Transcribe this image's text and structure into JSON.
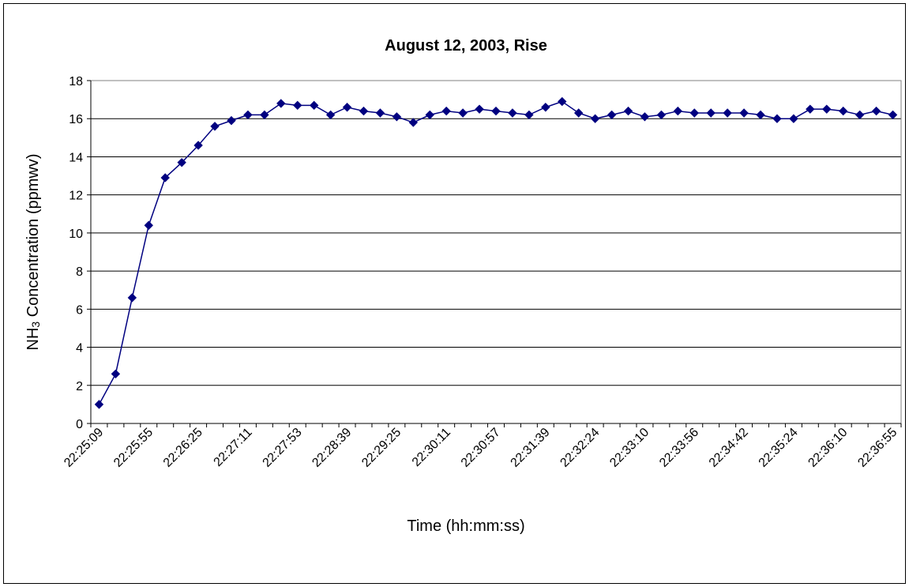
{
  "chart_data": {
    "type": "line",
    "title": "August 12, 2003,  Rise",
    "xlabel": "Time (hh:mm:ss)",
    "ylabel_main": "NH",
    "ylabel_sub": "3",
    "ylabel_rest": " Concentration (ppmwv)",
    "ylim": [
      0,
      18
    ],
    "ytick_step": 2,
    "grid": true,
    "x_tick_labels": [
      "22:25:09",
      "22:25:55",
      "22:26:25",
      "22:27:11",
      "22:27:53",
      "22:28:39",
      "22:29:25",
      "22:30:11",
      "22:30:57",
      "22:31:39",
      "22:32:24",
      "22:33:10",
      "22:33:56",
      "22:34:42",
      "22:35:24",
      "22:36:10",
      "22:36:55"
    ],
    "x_tick_every": 3,
    "series": [
      {
        "color": "#000080",
        "marker": "diamond",
        "values": [
          1.0,
          2.6,
          6.6,
          10.4,
          12.9,
          13.7,
          14.6,
          15.6,
          15.9,
          16.2,
          16.2,
          16.8,
          16.7,
          16.7,
          16.2,
          16.6,
          16.4,
          16.3,
          16.1,
          15.8,
          16.2,
          16.4,
          16.3,
          16.5,
          16.4,
          16.3,
          16.2,
          16.6,
          16.9,
          16.3,
          16.0,
          16.2,
          16.4,
          16.1,
          16.2,
          16.4,
          16.3,
          16.3,
          16.3,
          16.3,
          16.2,
          16.0,
          16.0,
          16.5,
          16.5,
          16.4,
          16.2,
          16.4,
          16.2
        ]
      }
    ]
  }
}
